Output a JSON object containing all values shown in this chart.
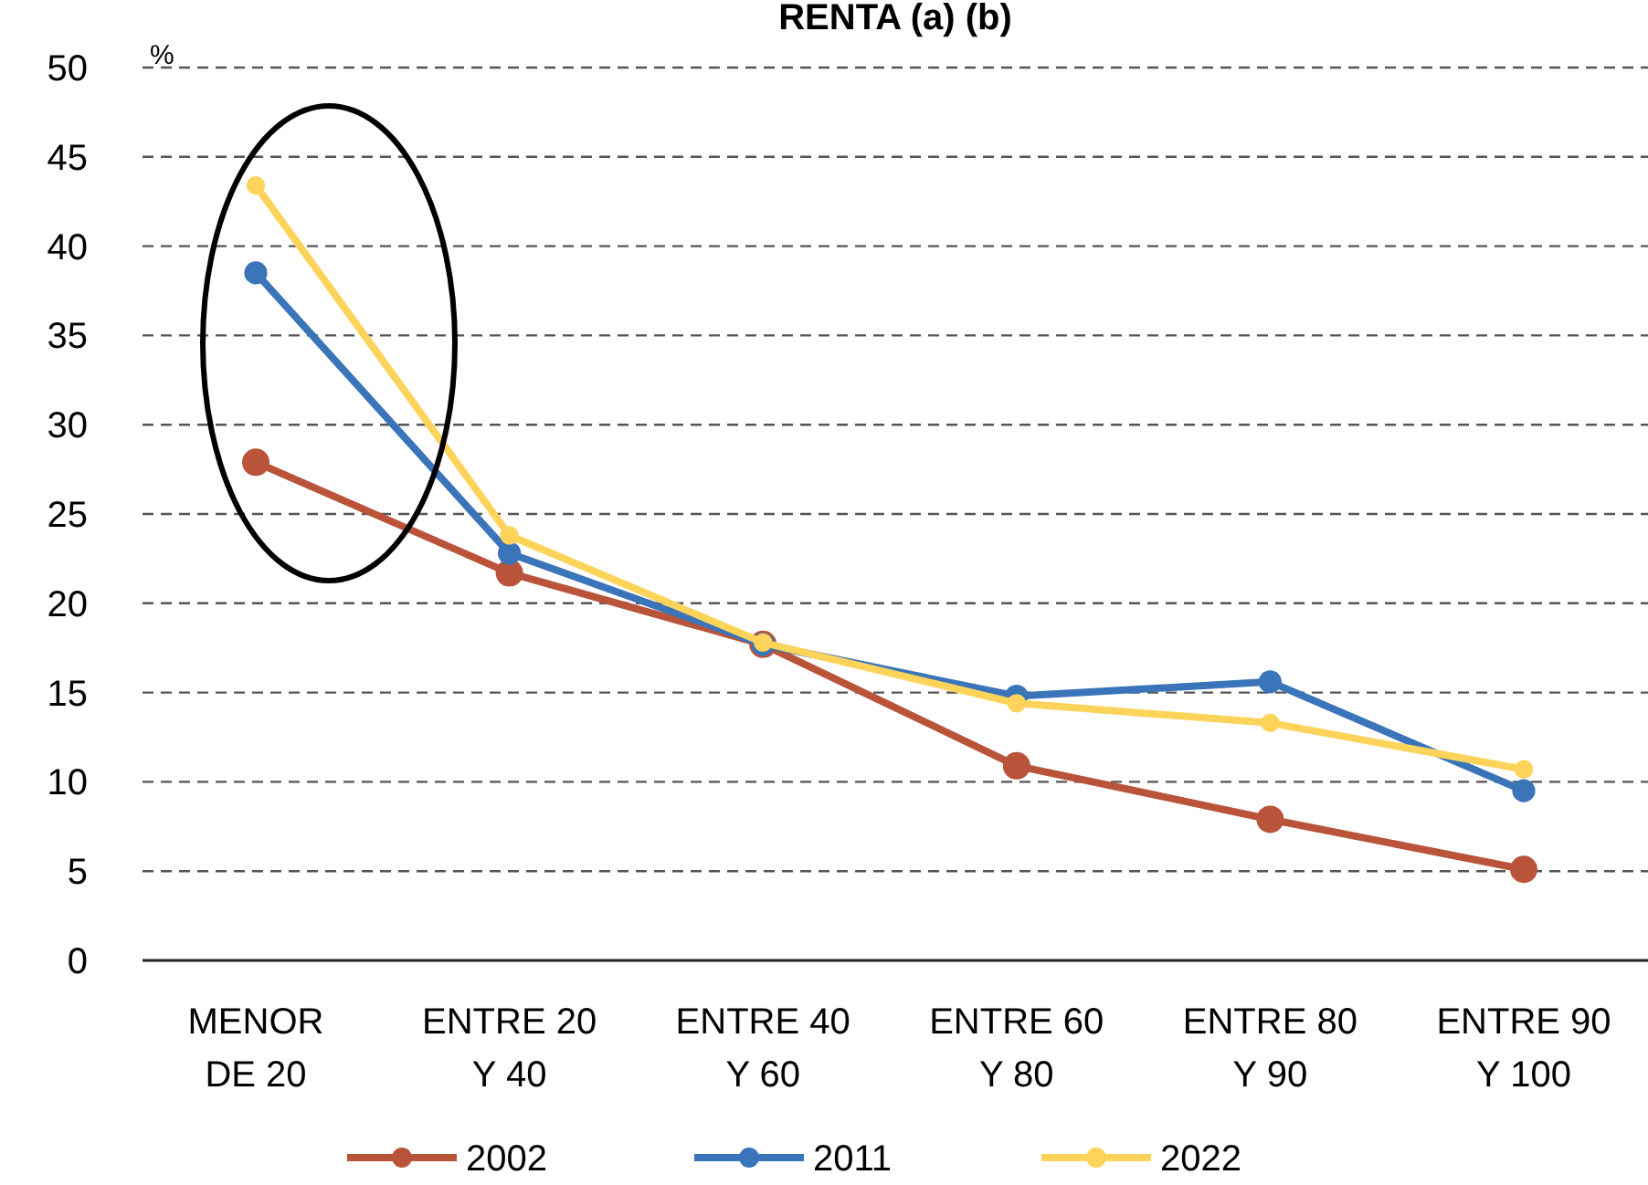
{
  "chart_data": {
    "type": "line",
    "title": "RENTA (a) (b)",
    "ylabel": "%",
    "categories": [
      "MENOR DE 20",
      "ENTRE 20 Y 40",
      "ENTRE 40 Y 60",
      "ENTRE 60 Y 80",
      "ENTRE 80 Y 90",
      "ENTRE 90 Y 100"
    ],
    "series": [
      {
        "name": "2002",
        "color": "#b9533a",
        "values": [
          27.9,
          21.7,
          17.7,
          10.9,
          7.9,
          5.1
        ]
      },
      {
        "name": "2011",
        "color": "#3a74b9",
        "values": [
          38.5,
          22.8,
          17.7,
          14.8,
          15.6,
          9.5
        ]
      },
      {
        "name": "2022",
        "color": "#fdd35a",
        "values": [
          43.4,
          23.8,
          17.8,
          14.4,
          13.3,
          10.7
        ]
      }
    ],
    "ylim": [
      0,
      50
    ],
    "yticks": [
      0,
      5,
      10,
      15,
      20,
      25,
      30,
      35,
      40,
      45,
      50
    ],
    "grid": "y",
    "legend": "bottom",
    "marker": "circle",
    "line_style": "solid"
  }
}
